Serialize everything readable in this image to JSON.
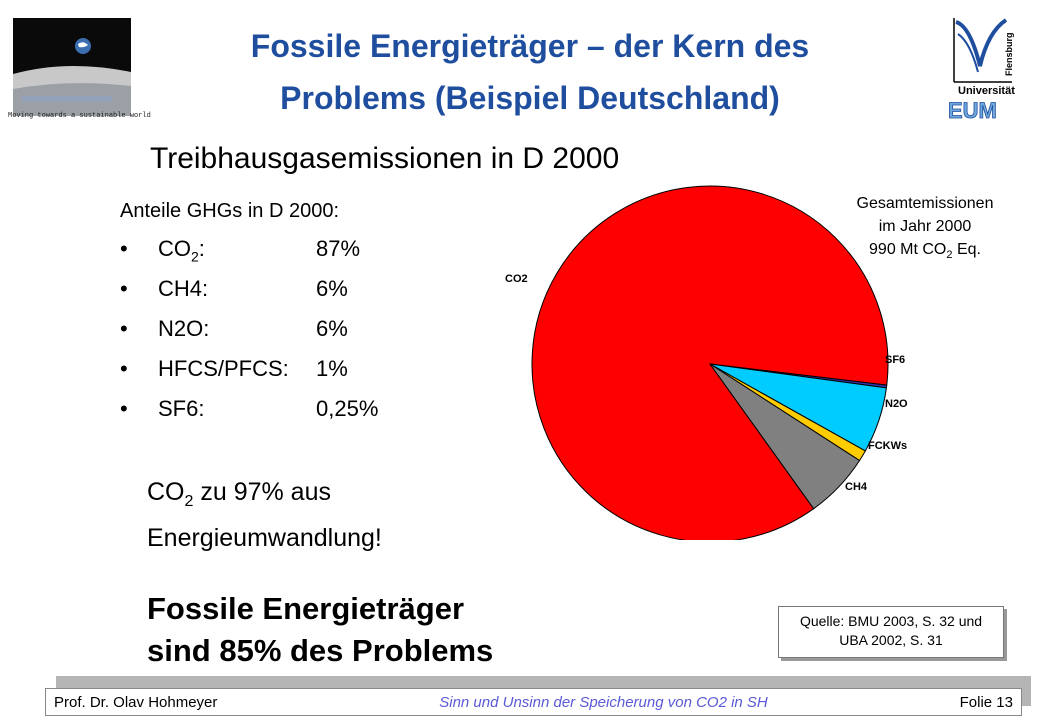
{
  "header": {
    "title_line1": "Fossile Energieträger – der Kern des",
    "title_line2": "Problems (Beispiel Deutschland)",
    "logo_caption": "Moving towards a sustainable world",
    "uni_logo_text": "Universität",
    "uni_logo_city": "Flensburg",
    "uni_logo_badge": "EUM"
  },
  "main": {
    "subtitle": "Treibhausgasemissionen in D 2000",
    "anteile_heading": "Anteile GHGs in D 2000:",
    "bullets": [
      {
        "name": "CO",
        "sub": "2",
        "suffix": ":",
        "value": "87%"
      },
      {
        "name": "CH4:",
        "sub": "",
        "suffix": "",
        "value": "6%"
      },
      {
        "name": "N2O:",
        "sub": "",
        "suffix": "",
        "value": "6%"
      },
      {
        "name": "HFCS/PFCS:",
        "sub": "",
        "suffix": "",
        "value": "1%"
      },
      {
        "name": "SF6:",
        "sub": "",
        "suffix": "",
        "value": "0,25%"
      }
    ],
    "co2_note_prefix": "CO",
    "co2_note_sub": "2",
    "co2_note_rest": " zu 97% aus",
    "co2_note_line2": "Energieumwandlung!",
    "fossil_line1": "Fossile Energieträger",
    "fossil_line2": "sind 85% des Problems",
    "gesamt_line1": "Gesamtemissionen",
    "gesamt_line2": "im Jahr 2000",
    "gesamt_line3_prefix": "990 Mt CO",
    "gesamt_line3_sub": "2",
    "gesamt_line3_suffix": " Eq.",
    "source_line1": "Quelle: BMU 2003, S. 32 und",
    "source_line2": "UBA 2002, S. 31"
  },
  "chart_data": {
    "type": "pie",
    "slices": [
      {
        "label": "CO2",
        "value": 87,
        "color": "#ff0000"
      },
      {
        "label": "SF6",
        "value": 0.25,
        "color": "#3333aa"
      },
      {
        "label": "N2O",
        "value": 6,
        "color": "#00ccff"
      },
      {
        "label": "FCKWs",
        "value": 1,
        "color": "#ffcc00"
      },
      {
        "label": "CH4",
        "value": 6,
        "color": "#808080"
      }
    ]
  },
  "footer": {
    "author": "Prof. Dr. Olav Hohmeyer",
    "center": "Sinn und Unsinn der Speicherung von CO2 in SH",
    "page": "Folie 13"
  }
}
